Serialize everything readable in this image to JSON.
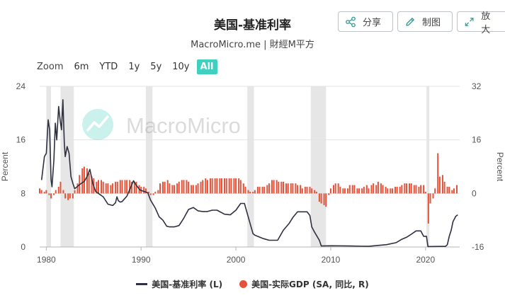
{
  "header": {
    "title": "美国-基准利率",
    "subtitle": "MacroMicro.me | 財經M平方"
  },
  "toolbar": {
    "share_label": "分享",
    "draw_label": "制图",
    "expand_label": "放大"
  },
  "zoom": {
    "label": "Zoom",
    "buttons": [
      "6m",
      "YTD",
      "1y",
      "5y",
      "10y",
      "All"
    ],
    "active": "All"
  },
  "watermark": "MacroMicro",
  "colors": {
    "rate_line": "#2f3040",
    "gdp_bars": "#e2533a",
    "recession_band": "#e6e6e6",
    "active_zoom": "#3fd0bf"
  },
  "chart_data": {
    "type": "line",
    "title": "美国-基准利率",
    "x_axis": {
      "range": [
        1979.3,
        2023.6
      ],
      "ticks": [
        "1980",
        "1990",
        "2000",
        "2010",
        "2020"
      ]
    },
    "y_left": {
      "label": "Percent",
      "range": [
        0,
        24
      ],
      "ticks": [
        "0",
        "8",
        "16",
        "24"
      ]
    },
    "y_right": {
      "label": "Percent",
      "range": [
        -16,
        32
      ],
      "ticks": [
        "-16",
        "0",
        "16",
        "32"
      ]
    },
    "legend_position": "bottom",
    "grid": "horizontal",
    "recessions": [
      [
        1980.0,
        1980.5
      ],
      [
        1981.5,
        1982.9
      ],
      [
        1990.5,
        1991.2
      ],
      [
        2001.2,
        2001.9
      ],
      [
        2007.9,
        2009.5
      ],
      [
        2020.1,
        2020.4
      ]
    ],
    "series": [
      {
        "name": "美国-基准利率 (L)",
        "axis": "left",
        "type": "line",
        "points": [
          [
            1979.5,
            10.0
          ],
          [
            1979.8,
            13.5
          ],
          [
            1980.0,
            14.0
          ],
          [
            1980.2,
            19.0
          ],
          [
            1980.35,
            17.5
          ],
          [
            1980.5,
            10.0
          ],
          [
            1980.6,
            9.0
          ],
          [
            1980.8,
            13.0
          ],
          [
            1980.95,
            18.5
          ],
          [
            1981.1,
            16.0
          ],
          [
            1981.3,
            21.0
          ],
          [
            1981.45,
            19.0
          ],
          [
            1981.6,
            17.5
          ],
          [
            1981.75,
            22.0
          ],
          [
            1981.9,
            15.5
          ],
          [
            1982.0,
            13.5
          ],
          [
            1982.2,
            15.0
          ],
          [
            1982.4,
            14.0
          ],
          [
            1982.6,
            10.5
          ],
          [
            1982.8,
            9.5
          ],
          [
            1983.0,
            8.7
          ],
          [
            1983.5,
            9.3
          ],
          [
            1984.0,
            9.8
          ],
          [
            1984.3,
            10.5
          ],
          [
            1984.6,
            11.6
          ],
          [
            1984.9,
            9.5
          ],
          [
            1985.2,
            8.3
          ],
          [
            1985.6,
            7.9
          ],
          [
            1986.0,
            7.5
          ],
          [
            1986.5,
            6.4
          ],
          [
            1987.0,
            6.2
          ],
          [
            1987.3,
            6.6
          ],
          [
            1987.45,
            7.5
          ],
          [
            1987.6,
            6.9
          ],
          [
            1987.8,
            6.7
          ],
          [
            1988.0,
            6.8
          ],
          [
            1988.5,
            7.6
          ],
          [
            1988.9,
            8.9
          ],
          [
            1989.2,
            9.9
          ],
          [
            1989.5,
            9.2
          ],
          [
            1989.9,
            8.5
          ],
          [
            1990.3,
            8.3
          ],
          [
            1990.7,
            8.1
          ],
          [
            1991.0,
            7.0
          ],
          [
            1991.5,
            5.8
          ],
          [
            1991.9,
            4.5
          ],
          [
            1992.3,
            4.0
          ],
          [
            1992.7,
            3.1
          ],
          [
            1993.0,
            3.0
          ],
          [
            1993.5,
            3.0
          ],
          [
            1994.0,
            3.2
          ],
          [
            1994.5,
            4.3
          ],
          [
            1995.0,
            5.6
          ],
          [
            1995.5,
            5.9
          ],
          [
            1996.0,
            5.4
          ],
          [
            1996.5,
            5.3
          ],
          [
            1997.0,
            5.3
          ],
          [
            1997.5,
            5.5
          ],
          [
            1998.0,
            5.5
          ],
          [
            1998.8,
            4.9
          ],
          [
            1999.4,
            4.8
          ],
          [
            2000.0,
            5.5
          ],
          [
            2000.5,
            6.5
          ],
          [
            2000.9,
            6.5
          ],
          [
            2001.1,
            5.5
          ],
          [
            2001.4,
            4.0
          ],
          [
            2001.8,
            2.0
          ],
          [
            2002.0,
            1.75
          ],
          [
            2002.9,
            1.25
          ],
          [
            2003.5,
            1.0
          ],
          [
            2004.4,
            1.0
          ],
          [
            2005.0,
            2.5
          ],
          [
            2005.6,
            3.5
          ],
          [
            2006.0,
            4.4
          ],
          [
            2006.5,
            5.25
          ],
          [
            2007.5,
            5.25
          ],
          [
            2007.8,
            4.7
          ],
          [
            2008.0,
            3.0
          ],
          [
            2008.3,
            2.2
          ],
          [
            2008.8,
            1.0
          ],
          [
            2009.0,
            0.15
          ],
          [
            2010.0,
            0.18
          ],
          [
            2012.0,
            0.15
          ],
          [
            2014.0,
            0.1
          ],
          [
            2015.9,
            0.35
          ],
          [
            2016.9,
            0.65
          ],
          [
            2017.5,
            1.15
          ],
          [
            2018.0,
            1.45
          ],
          [
            2018.5,
            1.9
          ],
          [
            2019.0,
            2.4
          ],
          [
            2019.5,
            2.4
          ],
          [
            2019.8,
            1.6
          ],
          [
            2020.1,
            1.6
          ],
          [
            2020.25,
            0.06
          ],
          [
            2021.5,
            0.08
          ],
          [
            2022.1,
            0.08
          ],
          [
            2022.3,
            0.35
          ],
          [
            2022.5,
            1.6
          ],
          [
            2022.7,
            2.5
          ],
          [
            2022.9,
            3.8
          ],
          [
            2023.2,
            4.6
          ],
          [
            2023.4,
            4.8
          ]
        ]
      },
      {
        "name": "美国-实际GDP (SA, 同比, R)",
        "axis": "right",
        "type": "bar",
        "points": [
          [
            1979.3,
            1.5
          ],
          [
            1979.5,
            1.0
          ],
          [
            1979.8,
            0.5
          ],
          [
            1980.0,
            1.0
          ],
          [
            1980.3,
            -0.5
          ],
          [
            1980.5,
            -1.5
          ],
          [
            1980.8,
            -0.5
          ],
          [
            1981.0,
            1.0
          ],
          [
            1981.3,
            2.0
          ],
          [
            1981.5,
            3.5
          ],
          [
            1981.8,
            1.0
          ],
          [
            1982.0,
            -1.5
          ],
          [
            1982.3,
            -2.0
          ],
          [
            1982.5,
            -1.5
          ],
          [
            1982.8,
            -1.5
          ],
          [
            1983.0,
            1.0
          ],
          [
            1983.3,
            3.0
          ],
          [
            1983.5,
            5.5
          ],
          [
            1983.8,
            7.5
          ],
          [
            1984.0,
            8.0
          ],
          [
            1984.3,
            7.5
          ],
          [
            1984.5,
            6.0
          ],
          [
            1984.8,
            5.0
          ],
          [
            1985.0,
            4.5
          ],
          [
            1985.3,
            3.5
          ],
          [
            1985.5,
            4.0
          ],
          [
            1985.8,
            4.0
          ],
          [
            1986.0,
            3.5
          ],
          [
            1986.3,
            3.0
          ],
          [
            1986.5,
            3.0
          ],
          [
            1986.8,
            2.5
          ],
          [
            1987.0,
            3.0
          ],
          [
            1987.3,
            3.5
          ],
          [
            1987.5,
            3.5
          ],
          [
            1987.8,
            4.0
          ],
          [
            1988.0,
            4.0
          ],
          [
            1988.3,
            4.0
          ],
          [
            1988.5,
            4.0
          ],
          [
            1988.8,
            4.0
          ],
          [
            1989.0,
            3.5
          ],
          [
            1989.3,
            3.5
          ],
          [
            1989.5,
            3.5
          ],
          [
            1989.8,
            2.5
          ],
          [
            1990.0,
            2.0
          ],
          [
            1990.3,
            2.0
          ],
          [
            1990.5,
            1.5
          ],
          [
            1990.8,
            0.5
          ],
          [
            1991.0,
            -0.5
          ],
          [
            1991.3,
            -0.5
          ],
          [
            1991.5,
            0.5
          ],
          [
            1991.8,
            1.0
          ],
          [
            1992.0,
            3.0
          ],
          [
            1992.3,
            3.5
          ],
          [
            1992.5,
            3.5
          ],
          [
            1992.8,
            4.0
          ],
          [
            1993.0,
            3.0
          ],
          [
            1993.3,
            2.5
          ],
          [
            1993.5,
            2.5
          ],
          [
            1993.8,
            3.0
          ],
          [
            1994.0,
            3.5
          ],
          [
            1994.3,
            4.0
          ],
          [
            1994.5,
            4.0
          ],
          [
            1994.8,
            4.0
          ],
          [
            1995.0,
            3.5
          ],
          [
            1995.3,
            2.5
          ],
          [
            1995.5,
            2.5
          ],
          [
            1995.8,
            2.5
          ],
          [
            1996.0,
            3.0
          ],
          [
            1996.3,
            3.5
          ],
          [
            1996.5,
            4.0
          ],
          [
            1996.8,
            4.5
          ],
          [
            1997.0,
            4.0
          ],
          [
            1997.3,
            4.5
          ],
          [
            1997.5,
            4.5
          ],
          [
            1997.8,
            4.5
          ],
          [
            1998.0,
            4.5
          ],
          [
            1998.3,
            4.5
          ],
          [
            1998.5,
            4.5
          ],
          [
            1998.8,
            4.5
          ],
          [
            1999.0,
            4.5
          ],
          [
            1999.3,
            4.5
          ],
          [
            1999.5,
            4.5
          ],
          [
            1999.8,
            4.5
          ],
          [
            2000.0,
            4.5
          ],
          [
            2000.3,
            4.5
          ],
          [
            2000.5,
            4.0
          ],
          [
            2000.8,
            3.0
          ],
          [
            2001.0,
            2.0
          ],
          [
            2001.3,
            1.0
          ],
          [
            2001.5,
            0.5
          ],
          [
            2001.8,
            0.5
          ],
          [
            2002.0,
            1.0
          ],
          [
            2002.3,
            2.0
          ],
          [
            2002.5,
            2.0
          ],
          [
            2002.8,
            2.0
          ],
          [
            2003.0,
            2.0
          ],
          [
            2003.3,
            2.5
          ],
          [
            2003.5,
            3.0
          ],
          [
            2003.8,
            4.0
          ],
          [
            2004.0,
            4.0
          ],
          [
            2004.3,
            4.0
          ],
          [
            2004.5,
            3.5
          ],
          [
            2004.8,
            3.5
          ],
          [
            2005.0,
            3.5
          ],
          [
            2005.3,
            3.0
          ],
          [
            2005.5,
            3.0
          ],
          [
            2005.8,
            3.0
          ],
          [
            2006.0,
            3.0
          ],
          [
            2006.3,
            3.0
          ],
          [
            2006.5,
            2.5
          ],
          [
            2006.8,
            2.5
          ],
          [
            2007.0,
            1.5
          ],
          [
            2007.3,
            2.0
          ],
          [
            2007.5,
            2.0
          ],
          [
            2007.8,
            2.0
          ],
          [
            2008.0,
            1.5
          ],
          [
            2008.3,
            1.0
          ],
          [
            2008.5,
            0.5
          ],
          [
            2008.8,
            -2.5
          ],
          [
            2009.0,
            -3.0
          ],
          [
            2009.3,
            -3.5
          ],
          [
            2009.5,
            -4.0
          ],
          [
            2009.8,
            -0.5
          ],
          [
            2010.0,
            1.5
          ],
          [
            2010.3,
            2.5
          ],
          [
            2010.5,
            3.0
          ],
          [
            2010.8,
            3.0
          ],
          [
            2011.0,
            2.0
          ],
          [
            2011.3,
            1.5
          ],
          [
            2011.5,
            1.5
          ],
          [
            2011.8,
            1.5
          ],
          [
            2012.0,
            2.5
          ],
          [
            2012.3,
            2.5
          ],
          [
            2012.5,
            2.5
          ],
          [
            2012.8,
            1.5
          ],
          [
            2013.0,
            1.5
          ],
          [
            2013.3,
            1.5
          ],
          [
            2013.5,
            2.0
          ],
          [
            2013.8,
            2.5
          ],
          [
            2014.0,
            1.5
          ],
          [
            2014.3,
            2.5
          ],
          [
            2014.5,
            3.0
          ],
          [
            2014.8,
            2.5
          ],
          [
            2015.0,
            3.5
          ],
          [
            2015.3,
            3.0
          ],
          [
            2015.5,
            2.5
          ],
          [
            2015.8,
            2.0
          ],
          [
            2016.0,
            1.5
          ],
          [
            2016.3,
            1.5
          ],
          [
            2016.5,
            1.5
          ],
          [
            2016.8,
            2.0
          ],
          [
            2017.0,
            2.0
          ],
          [
            2017.3,
            2.0
          ],
          [
            2017.5,
            2.5
          ],
          [
            2017.8,
            3.0
          ],
          [
            2018.0,
            3.0
          ],
          [
            2018.3,
            3.0
          ],
          [
            2018.5,
            3.0
          ],
          [
            2018.8,
            2.5
          ],
          [
            2019.0,
            2.5
          ],
          [
            2019.3,
            2.0
          ],
          [
            2019.5,
            2.5
          ],
          [
            2019.8,
            2.5
          ],
          [
            2020.0,
            0.5
          ],
          [
            2020.3,
            -9.0
          ],
          [
            2020.5,
            -3.0
          ],
          [
            2020.8,
            -1.5
          ],
          [
            2021.0,
            1.5
          ],
          [
            2021.3,
            12.0
          ],
          [
            2021.5,
            5.0
          ],
          [
            2021.8,
            5.5
          ],
          [
            2022.0,
            3.5
          ],
          [
            2022.3,
            2.0
          ],
          [
            2022.5,
            2.0
          ],
          [
            2022.8,
            1.0
          ],
          [
            2023.0,
            1.5
          ],
          [
            2023.3,
            2.5
          ]
        ]
      }
    ]
  }
}
